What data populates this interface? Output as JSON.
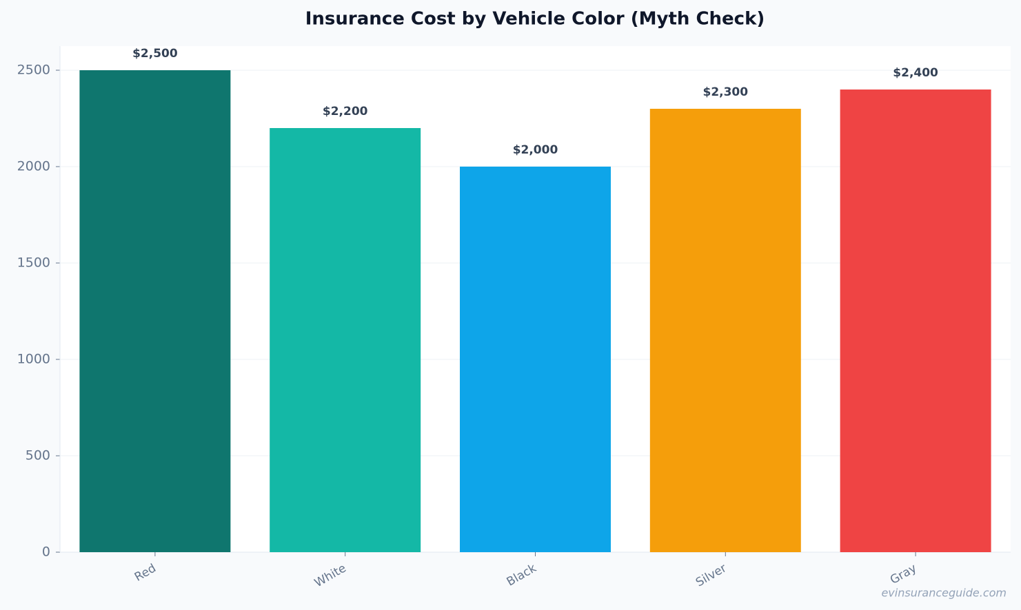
{
  "chart_data": {
    "type": "bar",
    "title": "Insurance Cost by Vehicle Color (Myth Check)",
    "categories": [
      "Red",
      "White",
      "Black",
      "Silver",
      "Gray"
    ],
    "values": [
      2500,
      2200,
      2000,
      2300,
      2400
    ],
    "value_labels": [
      "$2,500",
      "$2,200",
      "$2,000",
      "$2,300",
      "$2,400"
    ],
    "colors": [
      "#0f766e",
      "#14b8a6",
      "#0ea5e9",
      "#f59e0b",
      "#ef4444"
    ],
    "ylim": [
      0,
      2625
    ],
    "yticks": [
      0,
      500,
      1000,
      1500,
      2000,
      2500
    ],
    "grid": true,
    "watermark": "evinsuranceguide.com"
  }
}
